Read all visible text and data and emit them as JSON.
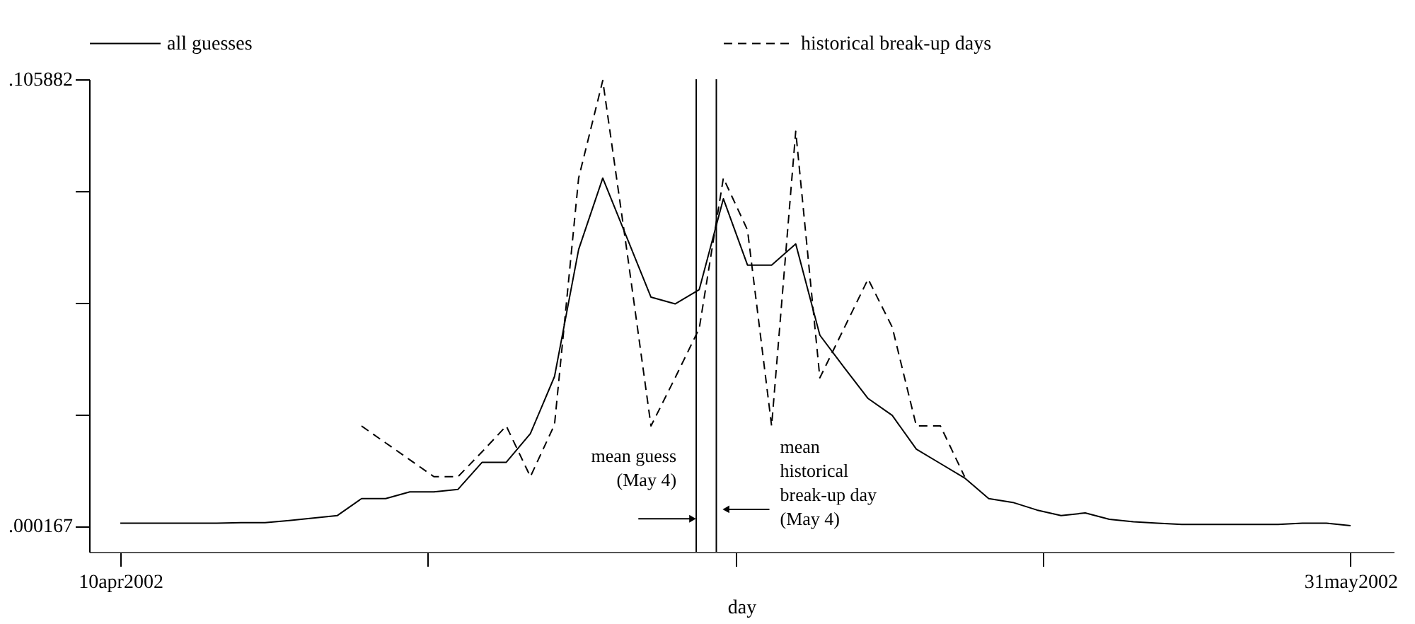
{
  "chart_data": {
    "type": "line",
    "xlabel": "day",
    "x": [
      "2002-04-10",
      "2002-04-11",
      "2002-04-12",
      "2002-04-13",
      "2002-04-14",
      "2002-04-15",
      "2002-04-16",
      "2002-04-17",
      "2002-04-18",
      "2002-04-19",
      "2002-04-20",
      "2002-04-21",
      "2002-04-22",
      "2002-04-23",
      "2002-04-24",
      "2002-04-25",
      "2002-04-26",
      "2002-04-27",
      "2002-04-28",
      "2002-04-29",
      "2002-04-30",
      "2002-05-01",
      "2002-05-02",
      "2002-05-03",
      "2002-05-04",
      "2002-05-05",
      "2002-05-06",
      "2002-05-07",
      "2002-05-08",
      "2002-05-09",
      "2002-05-10",
      "2002-05-11",
      "2002-05-12",
      "2002-05-13",
      "2002-05-14",
      "2002-05-15",
      "2002-05-16",
      "2002-05-17",
      "2002-05-18",
      "2002-05-19",
      "2002-05-20",
      "2002-05-21",
      "2002-05-22",
      "2002-05-23",
      "2002-05-24",
      "2002-05-25",
      "2002-05-26",
      "2002-05-27",
      "2002-05-28",
      "2002-05-29",
      "2002-05-30",
      "2002-05-31"
    ],
    "series": [
      {
        "name": "all guesses",
        "color": "#000000",
        "line_style": "solid",
        "values": [
          0.0008,
          0.0008,
          0.0008,
          0.0008,
          0.0008,
          0.0009,
          0.0009,
          0.0014,
          0.002,
          0.0026,
          0.0066,
          0.0066,
          0.0082,
          0.0082,
          0.0088,
          0.0152,
          0.0152,
          0.022,
          0.0355,
          0.0656,
          0.0825,
          0.0684,
          0.0543,
          0.0527,
          0.0561,
          0.0776,
          0.0619,
          0.0619,
          0.0669,
          0.0453,
          0.0377,
          0.0303,
          0.0263,
          0.0183,
          0.0149,
          0.0115,
          0.0066,
          0.0057,
          0.0039,
          0.0026,
          0.0032,
          0.0017,
          0.0011,
          0.0008,
          0.0005,
          0.0005,
          0.0005,
          0.0005,
          0.0005,
          0.0008,
          0.0008,
          0.0002
        ]
      },
      {
        "name": "historical break-up days",
        "color": "#000000",
        "line_style": "dashed",
        "values": [
          null,
          null,
          null,
          null,
          null,
          null,
          null,
          null,
          null,
          null,
          0.0238,
          0.0198,
          0.0158,
          0.0118,
          0.0118,
          0.0177,
          0.0238,
          0.0118,
          0.0241,
          0.0825,
          0.1056,
          0.0653,
          0.0238,
          0.0352,
          0.0469,
          0.0825,
          0.0702,
          0.0238,
          0.0936,
          0.0352,
          0.0469,
          0.0586,
          0.0472,
          0.0238,
          0.0238,
          0.0118,
          null,
          null,
          null,
          null,
          null,
          null,
          null,
          null,
          null,
          null,
          null,
          null,
          null,
          null,
          null,
          null
        ]
      }
    ],
    "xlim": [
      "2002-04-08T17:00",
      "2002-06-01T19:00"
    ],
    "xticks": [
      {
        "value": "2002-04-10",
        "label": "10apr2002"
      },
      {
        "value": "2002-04-22T18:00",
        "label": null
      },
      {
        "value": "2002-05-05T12:00",
        "label": null
      },
      {
        "value": "2002-05-18T06:00",
        "label": null
      },
      {
        "value": "2002-05-31",
        "label": "31may2002"
      }
    ],
    "ylim": [
      -0.006,
      0.1059
    ],
    "yticks": [
      {
        "value": 0.000167,
        "label": ".000167"
      },
      {
        "value": 0.026596,
        "label": null
      },
      {
        "value": 0.053025,
        "label": null
      },
      {
        "value": 0.079453,
        "label": null
      },
      {
        "value": 0.105882,
        "label": ".105882"
      }
    ],
    "ref_lines": [
      {
        "axis": "x",
        "value": "2002-05-03T21:00",
        "label": "mean guess\n(May 4)",
        "color": "#000000"
      },
      {
        "axis": "x",
        "value": "2002-05-04T17:00",
        "label": "mean\nhistorical\nbreak-up day\n(May 4)",
        "color": "#000000"
      }
    ],
    "grid": false,
    "legend": "top"
  }
}
